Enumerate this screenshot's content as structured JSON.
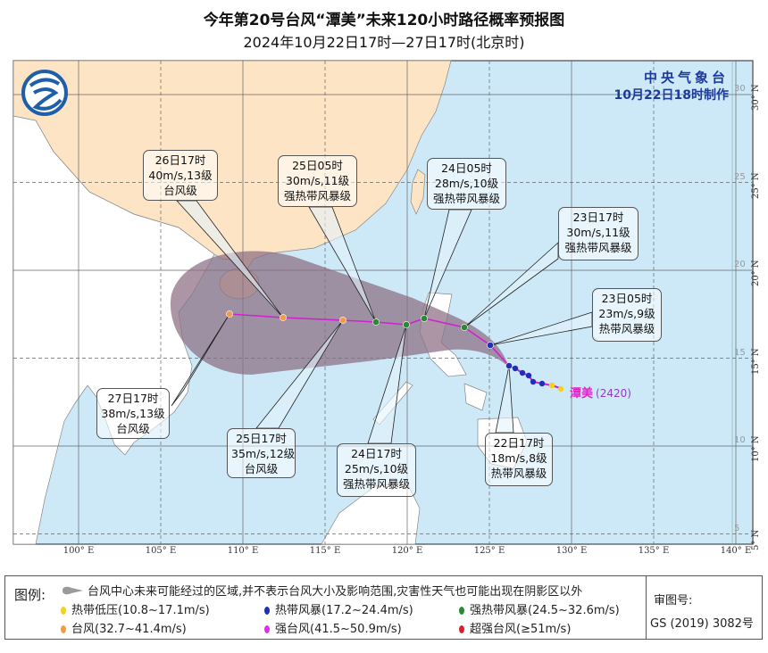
{
  "header": {
    "title": "今年第20号台风“潭美”未来120小时路径概率预报图",
    "subtitle": "2024年10月22日17时—27日17时(北京时)"
  },
  "agency": {
    "name": "中央气象台",
    "issued": "10月22日18时制作"
  },
  "typhoon": {
    "name": "潭美",
    "code": "(2420)"
  },
  "forecast_points": [
    {
      "time": "22日17时",
      "wind": "18m/s,8级",
      "category": "热带风暴级"
    },
    {
      "time": "23日05时",
      "wind": "23m/s,9级",
      "category": "热带风暴级"
    },
    {
      "time": "23日17时",
      "wind": "30m/s,11级",
      "category": "强热带风暴级"
    },
    {
      "time": "24日05时",
      "wind": "28m/s,10级",
      "category": "强热带风暴级"
    },
    {
      "time": "24日17时",
      "wind": "25m/s,10级",
      "category": "强热带风暴级"
    },
    {
      "time": "25日05时",
      "wind": "30m/s,11级",
      "category": "强热带风暴级"
    },
    {
      "time": "25日17时",
      "wind": "35m/s,12级",
      "category": "台风级"
    },
    {
      "time": "26日17时",
      "wind": "40m/s,13级",
      "category": "台风级"
    },
    {
      "time": "27日17时",
      "wind": "38m/s,13级",
      "category": "台风级"
    }
  ],
  "axes": {
    "lon_labels": [
      "100° E",
      "105° E",
      "110° E",
      "115° E",
      "120° E",
      "125° E",
      "130° E",
      "135° E",
      "140° E"
    ],
    "lat_labels": [
      "30° N",
      "25° N",
      "20° N",
      "15° N",
      "10° N",
      "5° N"
    ],
    "inner_lat_labels": [
      "30",
      "25",
      "20",
      "15",
      "10",
      "5"
    ]
  },
  "legend": {
    "title": "图例:",
    "cone_text": "台风中心未来可能经过的区域,并不表示台风大小及影响范围,灾害性天气也可能出现在阴影区以外",
    "items": [
      {
        "label": "热带低压(10.8~17.1m/s)",
        "color": "#f2d21b"
      },
      {
        "label": "热带风暴(17.2~24.4m/s)",
        "color": "#1f2fb8"
      },
      {
        "label": "强热带风暴(24.5~32.6m/s)",
        "color": "#2a8a32"
      },
      {
        "label": "台风(32.7~41.4m/s)",
        "color": "#f39a48"
      },
      {
        "label": "强台风(41.5~50.9m/s)",
        "color": "#e030e0"
      },
      {
        "label": "超强台风(≥51m/s)",
        "color": "#d8202a"
      }
    ],
    "review_label": "审图号:",
    "review_number": "GS (2019) 3082号"
  },
  "colors": {
    "ocean": "#cde9f8",
    "china_land": "#fde4c4",
    "other_land": "#ffffff",
    "cone": "#8c6e82",
    "track": "#d21fd2",
    "agency": "#1d3a9e"
  }
}
